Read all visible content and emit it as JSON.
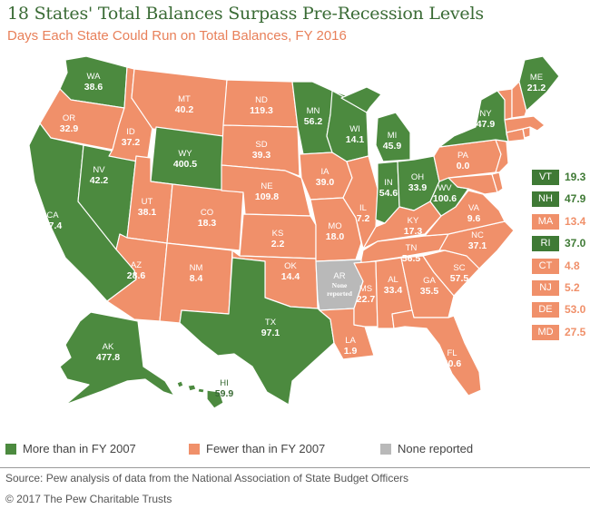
{
  "title": "18 States' Total Balances Surpass Pre-Recession Levels",
  "subtitle": "Days Each State Could Run on Total Balances, FY 2016",
  "colors": {
    "more": "#4c8a3f",
    "fewer": "#f0906a",
    "none": "#b9b9b9",
    "ne_more": "#3f7a35"
  },
  "legend": {
    "more": "More than in FY 2007",
    "fewer": "Fewer than in FY 2007",
    "none": "None reported"
  },
  "states": {
    "WA": {
      "abbr": "WA",
      "value": "38.6",
      "status": "more"
    },
    "OR": {
      "abbr": "OR",
      "value": "32.9",
      "status": "fewer"
    },
    "CA": {
      "abbr": "CA",
      "value": "27.4",
      "status": "more"
    },
    "NV": {
      "abbr": "NV",
      "value": "42.2",
      "status": "more"
    },
    "ID": {
      "abbr": "ID",
      "value": "37.2",
      "status": "fewer"
    },
    "MT": {
      "abbr": "MT",
      "value": "40.2",
      "status": "fewer"
    },
    "WY": {
      "abbr": "WY",
      "value": "400.5",
      "status": "more"
    },
    "UT": {
      "abbr": "UT",
      "value": "38.1",
      "status": "fewer"
    },
    "AZ": {
      "abbr": "AZ",
      "value": "28.6",
      "status": "fewer"
    },
    "CO": {
      "abbr": "CO",
      "value": "18.3",
      "status": "fewer"
    },
    "NM": {
      "abbr": "NM",
      "value": "8.4",
      "status": "fewer"
    },
    "ND": {
      "abbr": "ND",
      "value": "119.3",
      "status": "fewer"
    },
    "SD": {
      "abbr": "SD",
      "value": "39.3",
      "status": "fewer"
    },
    "NE": {
      "abbr": "NE",
      "value": "109.8",
      "status": "fewer"
    },
    "KS": {
      "abbr": "KS",
      "value": "2.2",
      "status": "fewer"
    },
    "OK": {
      "abbr": "OK",
      "value": "14.4",
      "status": "fewer"
    },
    "TX": {
      "abbr": "TX",
      "value": "97.1",
      "status": "more"
    },
    "MN": {
      "abbr": "MN",
      "value": "56.2",
      "status": "more"
    },
    "IA": {
      "abbr": "IA",
      "value": "39.0",
      "status": "fewer"
    },
    "MO": {
      "abbr": "MO",
      "value": "18.0",
      "status": "fewer"
    },
    "AR": {
      "abbr": "AR",
      "value": "",
      "note": "None reported",
      "status": "none"
    },
    "LA": {
      "abbr": "LA",
      "value": "1.9",
      "status": "fewer"
    },
    "WI": {
      "abbr": "WI",
      "value": "14.1",
      "status": "more"
    },
    "IL": {
      "abbr": "IL",
      "value": "7.2",
      "status": "fewer"
    },
    "MI": {
      "abbr": "MI",
      "value": "45.9",
      "status": "more"
    },
    "IN": {
      "abbr": "IN",
      "value": "54.6",
      "status": "more"
    },
    "OH": {
      "abbr": "OH",
      "value": "33.9",
      "status": "more"
    },
    "KY": {
      "abbr": "KY",
      "value": "17.3",
      "status": "fewer"
    },
    "TN": {
      "abbr": "TN",
      "value": "56.5",
      "status": "fewer"
    },
    "MS": {
      "abbr": "MS",
      "value": "22.7",
      "status": "fewer"
    },
    "AL": {
      "abbr": "AL",
      "value": "33.4",
      "status": "fewer"
    },
    "GA": {
      "abbr": "GA",
      "value": "35.5",
      "status": "fewer"
    },
    "FL": {
      "abbr": "FL",
      "value": "40.6",
      "status": "fewer"
    },
    "SC": {
      "abbr": "SC",
      "value": "57.5",
      "status": "fewer"
    },
    "NC": {
      "abbr": "NC",
      "value": "37.1",
      "status": "fewer"
    },
    "VA": {
      "abbr": "VA",
      "value": "9.6",
      "status": "fewer"
    },
    "WV": {
      "abbr": "WV",
      "value": "100.6",
      "status": "more"
    },
    "PA": {
      "abbr": "PA",
      "value": "0.0",
      "status": "fewer"
    },
    "NY": {
      "abbr": "NY",
      "value": "47.9",
      "status": "more"
    },
    "ME": {
      "abbr": "ME",
      "value": "21.2",
      "status": "more"
    },
    "AK": {
      "abbr": "AK",
      "value": "477.8",
      "status": "more"
    },
    "HI": {
      "abbr": "HI",
      "value": "59.9",
      "status": "more"
    }
  },
  "small_states": [
    {
      "abbr": "VT",
      "value": "19.3",
      "status": "more"
    },
    {
      "abbr": "NH",
      "value": "47.9",
      "status": "more"
    },
    {
      "abbr": "MA",
      "value": "13.4",
      "status": "fewer"
    },
    {
      "abbr": "RI",
      "value": "37.0",
      "status": "more"
    },
    {
      "abbr": "CT",
      "value": "4.8",
      "status": "fewer"
    },
    {
      "abbr": "NJ",
      "value": "5.2",
      "status": "fewer"
    },
    {
      "abbr": "DE",
      "value": "53.0",
      "status": "fewer"
    },
    {
      "abbr": "MD",
      "value": "27.5",
      "status": "fewer"
    }
  ],
  "source": "Source: Pew analysis of data from the National Association of State Budget Officers",
  "copyright": "© 2017 The Pew Charitable Trusts"
}
